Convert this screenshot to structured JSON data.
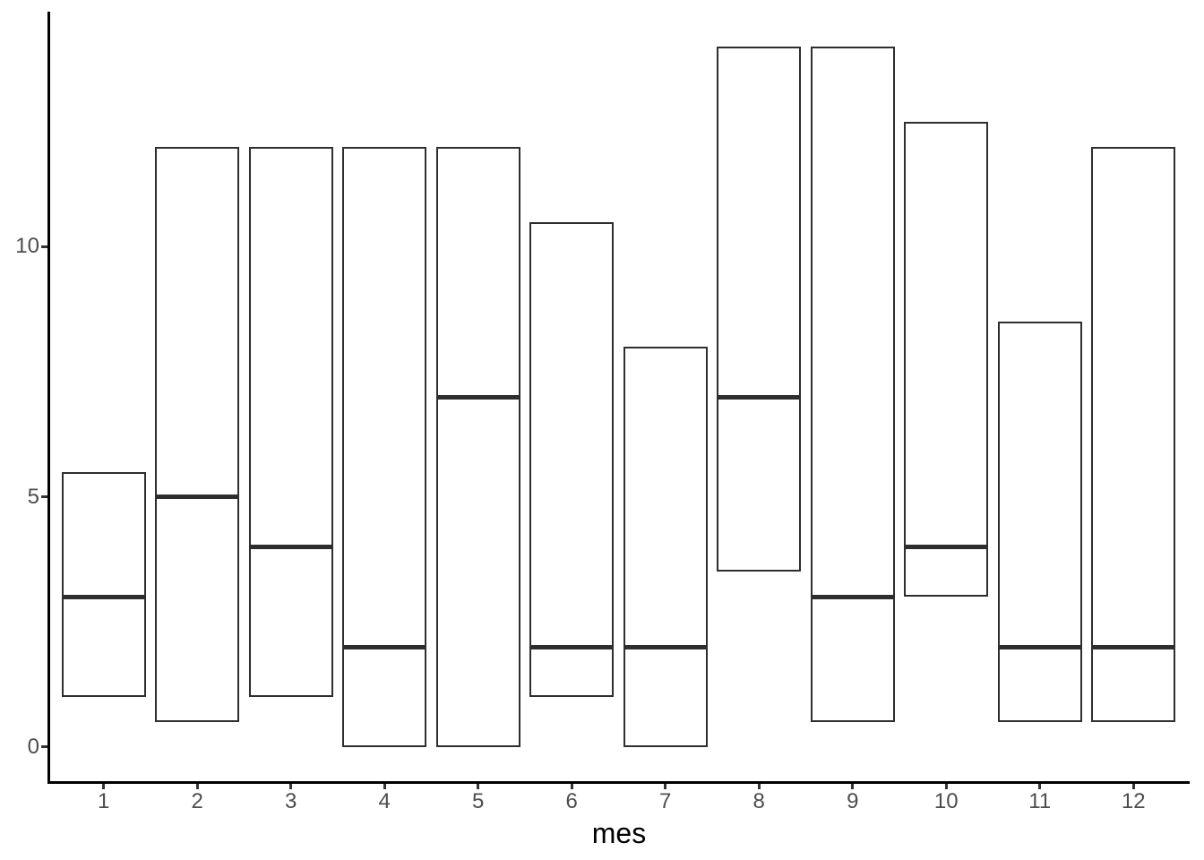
{
  "chart_data": {
    "type": "bar",
    "subtype": "crossbar (floating range bars with median line)",
    "title": "",
    "xlabel": "mes",
    "ylabel": "",
    "x_ticks": [
      1,
      2,
      3,
      4,
      5,
      6,
      7,
      8,
      9,
      10,
      11,
      12
    ],
    "y_ticks": [
      0,
      5,
      10
    ],
    "xlim": [
      0.41,
      12.6
    ],
    "ylim": [
      -0.7,
      14.7
    ],
    "grid": "off",
    "legend": "none",
    "bar_width": 0.9,
    "boxes": [
      {
        "x": 1,
        "ymin": 1,
        "middle": 3,
        "ymax": 5.5
      },
      {
        "x": 2,
        "ymin": 0.5,
        "middle": 5,
        "ymax": 12
      },
      {
        "x": 3,
        "ymin": 1,
        "middle": 4,
        "ymax": 12
      },
      {
        "x": 4,
        "ymin": 0,
        "middle": 2,
        "ymax": 12
      },
      {
        "x": 5,
        "ymin": 0,
        "middle": 7,
        "ymax": 12
      },
      {
        "x": 6,
        "ymin": 1,
        "middle": 2,
        "ymax": 10.5
      },
      {
        "x": 7,
        "ymin": 0,
        "middle": 2,
        "ymax": 8
      },
      {
        "x": 8,
        "ymin": 3.5,
        "middle": 7,
        "ymax": 14
      },
      {
        "x": 9,
        "ymin": 0.5,
        "middle": 3,
        "ymax": 14
      },
      {
        "x": 10,
        "ymin": 3,
        "middle": 4,
        "ymax": 12.5
      },
      {
        "x": 11,
        "ymin": 0.5,
        "middle": 2,
        "ymax": 8.5
      },
      {
        "x": 12,
        "ymin": 0.5,
        "middle": 2,
        "ymax": 12
      }
    ],
    "colors": {
      "background": "#ffffff",
      "box_border": "#2e2e2e",
      "median_line": "#2e2e2e",
      "axis_line": "#000000",
      "tick_mark": "#333333",
      "tick_label": "#4d4d4d",
      "axis_title": "#000000"
    }
  }
}
